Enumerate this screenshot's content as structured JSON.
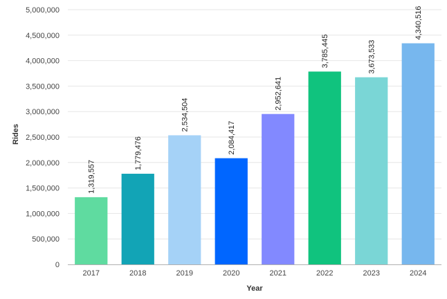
{
  "chart_data": {
    "type": "bar",
    "categories": [
      "2017",
      "2018",
      "2019",
      "2020",
      "2021",
      "2022",
      "2023",
      "2024"
    ],
    "values": [
      1319557,
      1779476,
      2534504,
      2084417,
      2952641,
      3785445,
      3673533,
      4340516
    ],
    "value_labels": [
      "1,319,557",
      "1,779,476",
      "2,534,504",
      "2,084,417",
      "2,952,641",
      "3,785,445",
      "3,673,533",
      "4,340,516"
    ],
    "colors": [
      "#5fdba0",
      "#12a4b6",
      "#a5d2f7",
      "#0066ff",
      "#8289ff",
      "#10c37e",
      "#7ad6d6",
      "#77b7ee"
    ],
    "xlabel": "Year",
    "ylabel": "Rides",
    "ylim": [
      0,
      5000000
    ],
    "y_ticks": [
      0,
      500000,
      1000000,
      1500000,
      2000000,
      2500000,
      3000000,
      3500000,
      4000000,
      4500000,
      5000000
    ],
    "y_tick_labels": [
      "0",
      "500,000",
      "1,000,000",
      "1,500,000",
      "2,000,000",
      "2,500,000",
      "3,000,000",
      "3,500,000",
      "4,000,000",
      "4,500,000",
      "5,000,000"
    ],
    "grid": true,
    "legend": "none"
  }
}
